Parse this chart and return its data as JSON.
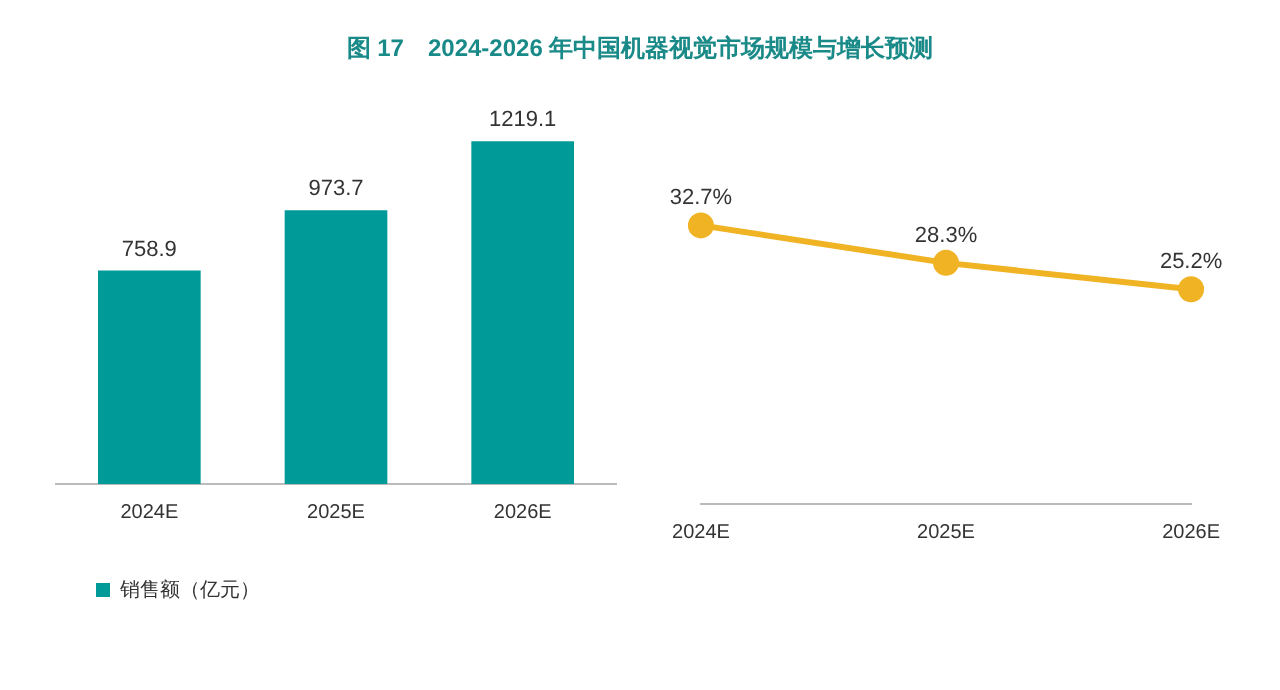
{
  "chart_data": [
    {
      "type": "bar",
      "title": "图 17　2024-2026 年中国机器视觉市场规模与增长预测",
      "categories": [
        "2024E",
        "2025E",
        "2026E"
      ],
      "series": [
        {
          "name": "销售额（亿元）",
          "color": "#009b98",
          "values": [
            758.9,
            973.7,
            1219.1
          ]
        }
      ],
      "data_labels": true,
      "legend": "bottom left",
      "grid": false
    },
    {
      "type": "line",
      "categories": [
        "2024E",
        "2025E",
        "2026E"
      ],
      "series": [
        {
          "color": "#f0b323",
          "values": [
            32.7,
            28.3,
            25.2
          ],
          "value_labels": [
            "32.7%",
            "28.3%",
            "25.2%"
          ]
        }
      ],
      "marker": "circle",
      "line_style": "solid",
      "legend": false,
      "grid": false
    }
  ]
}
